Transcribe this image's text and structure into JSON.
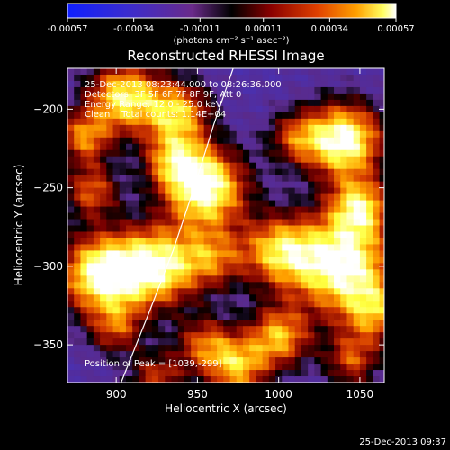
{
  "chart_data": {
    "type": "heatmap",
    "title": "Reconstructed RHESSI Image",
    "xlabel": "Heliocentric X (arcsec)",
    "ylabel": "Heliocentric Y (arcsec)",
    "xlim": [
      870,
      1065
    ],
    "ylim": [
      -374,
      -174
    ],
    "xticks": [
      900,
      950,
      1000,
      1050
    ],
    "yticks": [
      -200,
      -250,
      -300,
      -350
    ],
    "colorbar": {
      "ticks": [
        "-0.00057",
        "-0.00034",
        "-0.00011",
        "0.00011",
        "0.00034",
        "0.00057"
      ],
      "min": -0.00057,
      "max": 0.00057,
      "units_label": "(photons cm⁻² s⁻¹ asec⁻²)"
    },
    "annotations": [
      "25-Dec-2013 08:23:44.000 to 08:26:36.000",
      "Detectors: 3F 5F 6F 7F 8F 9F, Att 0",
      "Energy Range: 12.0 - 25.0 keV",
      "Clean    Total counts: 1.14E+04"
    ],
    "peak_label": "Position of Peak = [1039,-299]",
    "peak": [
      1039,
      -299
    ],
    "limb_curve": [
      [
        903,
        -374
      ],
      [
        920,
        -330
      ],
      [
        935,
        -290
      ],
      [
        948,
        -250
      ],
      [
        960,
        -210
      ],
      [
        972,
        -174
      ]
    ],
    "intensity_blobs": [
      {
        "x": 905,
        "y": -192,
        "v": 0.85,
        "r": 16
      },
      {
        "x": 938,
        "y": -202,
        "v": 0.7,
        "r": 14
      },
      {
        "x": 880,
        "y": -218,
        "v": 0.6,
        "r": 12
      },
      {
        "x": 935,
        "y": -232,
        "v": 0.55,
        "r": 13
      },
      {
        "x": 955,
        "y": -250,
        "v": 1.0,
        "r": 18
      },
      {
        "x": 885,
        "y": -252,
        "v": 0.55,
        "r": 12
      },
      {
        "x": 1040,
        "y": -220,
        "v": 1.0,
        "r": 17
      },
      {
        "x": 1050,
        "y": -262,
        "v": 0.7,
        "r": 13
      },
      {
        "x": 1010,
        "y": -218,
        "v": 0.45,
        "r": 12
      },
      {
        "x": 1039,
        "y": -299,
        "v": 1.0,
        "r": 22
      },
      {
        "x": 1000,
        "y": -290,
        "v": 0.7,
        "r": 16
      },
      {
        "x": 1060,
        "y": -330,
        "v": 0.55,
        "r": 14
      },
      {
        "x": 890,
        "y": -305,
        "v": 0.95,
        "r": 18
      },
      {
        "x": 925,
        "y": -300,
        "v": 0.9,
        "r": 18
      },
      {
        "x": 960,
        "y": -295,
        "v": 0.5,
        "r": 14
      },
      {
        "x": 900,
        "y": -340,
        "v": 0.45,
        "r": 12
      },
      {
        "x": 955,
        "y": -350,
        "v": 0.55,
        "r": 13
      },
      {
        "x": 1000,
        "y": -345,
        "v": 0.7,
        "r": 14
      },
      {
        "x": 975,
        "y": -365,
        "v": 0.65,
        "r": 13
      },
      {
        "x": 1045,
        "y": -360,
        "v": 0.5,
        "r": 12
      },
      {
        "x": 925,
        "y": -372,
        "v": 0.5,
        "r": 12
      }
    ],
    "colors": {
      "positive_ramp": [
        "#000000",
        "#7a0000",
        "#d43a00",
        "#ffa000",
        "#ffff40",
        "#ffffff"
      ],
      "negative_ramp": [
        "#5a2a8a",
        "#4a30b0",
        "#2030ff"
      ],
      "background_low": "#4a2576"
    }
  },
  "footer": {
    "timestamp": "25-Dec-2013 09:37"
  }
}
